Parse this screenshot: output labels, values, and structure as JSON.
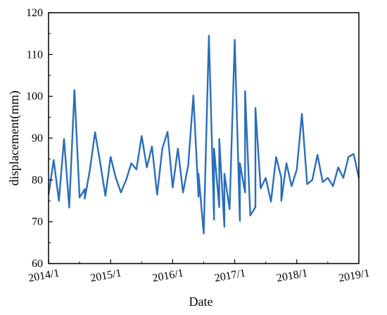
{
  "chart_data": {
    "type": "line",
    "title": "",
    "xlabel": "Date",
    "ylabel": "displacement(mm)",
    "xlim": [
      "2014/1",
      "2019/1"
    ],
    "ylim": [
      60,
      120
    ],
    "x_ticks": [
      "2014/1",
      "2015/1",
      "2016/1",
      "2017/1",
      "2018/1",
      "2019/1"
    ],
    "y_ticks": [
      60,
      70,
      80,
      90,
      100,
      110,
      120
    ],
    "grid": false,
    "legend": "none",
    "line_color": "#2a6ebb",
    "series": [
      {
        "x": [
          "2014/1",
          "2014/2",
          "2014/3",
          "2014/4",
          "2014/5",
          "2014/6",
          "2014/7",
          "2014/8",
          "2014/8",
          "2014/9",
          "2014/10",
          "2014/11",
          "2014/12",
          "2015/1",
          "2015/2",
          "2015/3",
          "2015/4",
          "2015/5",
          "2015/6",
          "2015/7",
          "2015/8",
          "2015/9",
          "2015/10",
          "2015/11",
          "2015/12",
          "2016/1",
          "2016/2",
          "2016/3",
          "2016/4",
          "2016/5",
          "2016/6",
          "2016/6",
          "2016/7",
          "2016/8",
          "2016/9",
          "2016/9",
          "2016/10",
          "2016/10",
          "2016/11",
          "2016/11",
          "2016/12",
          "2017/1",
          "2017/2",
          "2017/2",
          "2017/3",
          "2017/3",
          "2017/4",
          "2017/5",
          "2017/5",
          "2017/6",
          "2017/7",
          "2017/8",
          "2017/9",
          "2017/10",
          "2017/10",
          "2017/11",
          "2017/12",
          "2018/1",
          "2018/2",
          "2018/3",
          "2018/4",
          "2018/5",
          "2018/6",
          "2018/7",
          "2018/8",
          "2018/9",
          "2018/10",
          "2018/11",
          "2018/12",
          "2019/1"
        ],
        "y": [
          76.5,
          84.8,
          75,
          89.8,
          73.4,
          101.5,
          75.8,
          77.8,
          75.5,
          82.5,
          91.4,
          84,
          76.2,
          85.5,
          80.5,
          77,
          80,
          84,
          82.5,
          90.5,
          83,
          88,
          76.5,
          87.5,
          91.5,
          78.2,
          87.5,
          77,
          83.5,
          100.2,
          76,
          81.5,
          67.2,
          114.5,
          70.5,
          87.5,
          73.5,
          89.8,
          68.8,
          81.5,
          73,
          113.5,
          70.2,
          84,
          77,
          101.2,
          71.5,
          73.5,
          97.2,
          78,
          80.5,
          74.8,
          85.5,
          80.5,
          75,
          84,
          78.5,
          82.5,
          95.8,
          79,
          80,
          86,
          79.5,
          80.5,
          78.5,
          83,
          80.5,
          85.5,
          86.2,
          80.5
        ]
      }
    ]
  }
}
